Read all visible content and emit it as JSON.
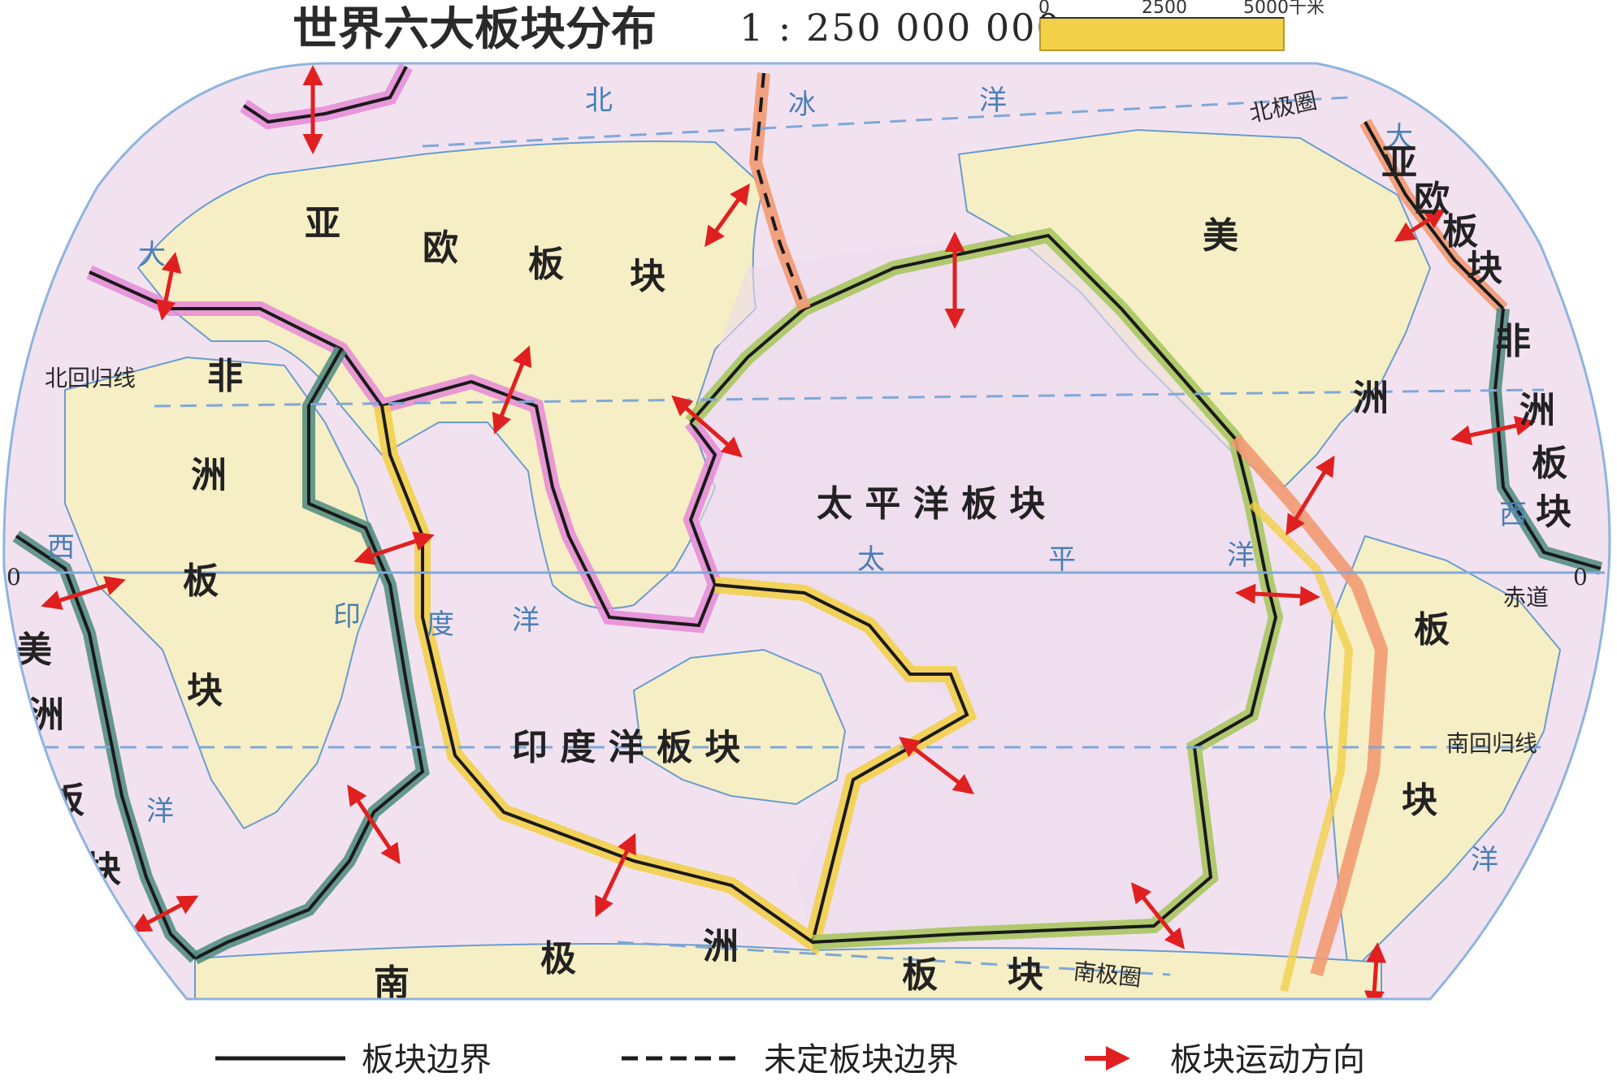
{
  "title": "世界六大板块分布",
  "scale": {
    "ratio": "1 : 250 000 000",
    "ticks": [
      "0",
      "2500",
      "5000千米"
    ]
  },
  "plates": {
    "eurasian": [
      "亚",
      "欧",
      "板",
      "块"
    ],
    "eurasian_right": [
      "亚",
      "欧",
      "板",
      "块"
    ],
    "african": [
      "非",
      "洲",
      "板",
      "块"
    ],
    "african_right": [
      "非",
      "洲",
      "板",
      "块"
    ],
    "american_left": [
      "美",
      "洲",
      "板",
      "块"
    ],
    "american_right": [
      "美",
      "洲",
      "板",
      "块"
    ],
    "pacific": "太 平 洋 板 块",
    "indian": "印 度 洋 板 块",
    "antarctic": [
      "南",
      "极",
      "洲",
      "板",
      "块"
    ]
  },
  "oceans": {
    "arctic": [
      "北",
      "冰",
      "洋"
    ],
    "atlantic_left": [
      "大",
      "西",
      "洋"
    ],
    "atlantic_right": [
      "大",
      "西",
      "洋"
    ],
    "indian": [
      "印",
      "度",
      "洋"
    ],
    "pacific": [
      "太",
      "平",
      "洋"
    ]
  },
  "lines": {
    "arctic_circle": "北极圈",
    "tropic_cancer": "北回归线",
    "equator": "赤道",
    "tropic_capricorn": "南回归线",
    "antarctic_circle": "南极圈",
    "zero_left": "0",
    "zero_right": "0"
  },
  "legend": {
    "boundary": "板块边界",
    "undetermined": "未定板块边界",
    "motion": "板块运动方向"
  },
  "colors": {
    "land": "#f6eec4",
    "ocean": "#f2e2f0",
    "eurasian_edge": "#e58ad6",
    "african_edge": "#4e8a7e",
    "pacific_edge": "#a9c760",
    "indian_edge": "#f2d04a",
    "american_edge": "#f29a72",
    "arrow": "#e02020",
    "grid": "#7fa8d8"
  }
}
